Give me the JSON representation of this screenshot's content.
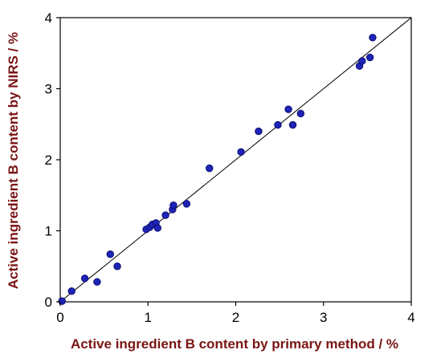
{
  "chart_data": {
    "type": "scatter",
    "title": "",
    "xlabel": "Active ingredient B content by primary method / %",
    "ylabel": "Active ingredient B content by NIRS / %",
    "xlim": [
      0,
      4
    ],
    "ylim": [
      0,
      4
    ],
    "xticks": [
      "0",
      "1",
      "2",
      "3",
      "4"
    ],
    "yticks": [
      "0",
      "1",
      "2",
      "3",
      "4"
    ],
    "grid": false,
    "legend": "none",
    "reference_line": {
      "x": [
        0,
        4
      ],
      "y": [
        0,
        4
      ]
    },
    "colors": {
      "point_fill": "#1f24b8",
      "point_stroke": "#0a0d6e",
      "axis_title": "#7a1414",
      "axis": "#000000"
    },
    "series": [
      {
        "points": [
          [
            0.02,
            0.01
          ],
          [
            0.13,
            0.15
          ],
          [
            0.28,
            0.33
          ],
          [
            0.42,
            0.28
          ],
          [
            0.57,
            0.67
          ],
          [
            0.65,
            0.5
          ],
          [
            0.98,
            1.02
          ],
          [
            1.02,
            1.05
          ],
          [
            1.05,
            1.09
          ],
          [
            1.09,
            1.11
          ],
          [
            1.11,
            1.04
          ],
          [
            1.2,
            1.22
          ],
          [
            1.28,
            1.3
          ],
          [
            1.29,
            1.36
          ],
          [
            1.44,
            1.38
          ],
          [
            1.7,
            1.88
          ],
          [
            2.06,
            2.11
          ],
          [
            2.26,
            2.4
          ],
          [
            2.48,
            2.49
          ],
          [
            2.6,
            2.71
          ],
          [
            2.65,
            2.49
          ],
          [
            2.74,
            2.65
          ],
          [
            3.41,
            3.32
          ],
          [
            3.44,
            3.39
          ],
          [
            3.53,
            3.44
          ],
          [
            3.56,
            3.72
          ]
        ]
      }
    ]
  }
}
